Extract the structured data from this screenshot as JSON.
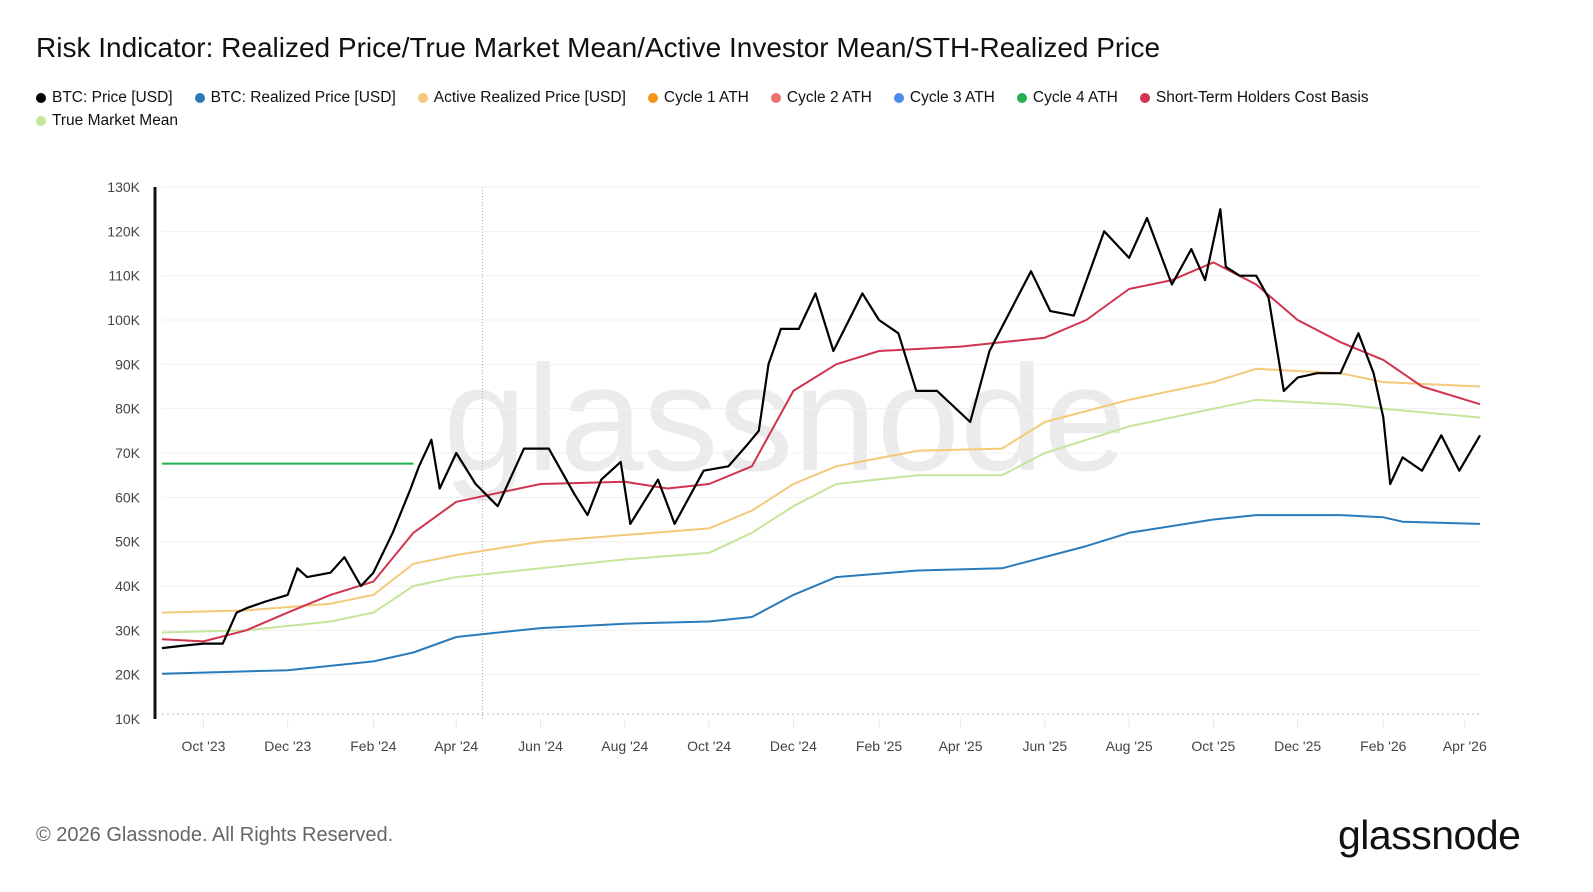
{
  "title": "Risk Indicator: Realized Price/True Market Mean/Active Investor Mean/STH-Realized Price",
  "footer": "© 2026 Glassnode. All Rights Reserved.",
  "logo_text": "glassnode",
  "watermark_text": "glassnode",
  "chart_data": {
    "type": "line",
    "title": "Risk Indicator: Realized Price/True Market Mean/Active Investor Mean/STH-Realized Price",
    "xlabel": "",
    "ylabel": "",
    "y_scale": "linear",
    "ylim": [
      10000,
      130000
    ],
    "xlim": [
      "2023-09-01",
      "2026-04-12"
    ],
    "grid": true,
    "legend_placement": "top-left",
    "y_ticks": [
      "10K",
      "20K",
      "30K",
      "40K",
      "50K",
      "60K",
      "70K",
      "80K",
      "90K",
      "100K",
      "110K",
      "120K",
      "130K"
    ],
    "x_ticks": [
      {
        "date": "2023-10-01",
        "label": "Oct '23"
      },
      {
        "date": "2023-12-01",
        "label": "Dec '23"
      },
      {
        "date": "2024-02-01",
        "label": "Feb '24"
      },
      {
        "date": "2024-04-01",
        "label": "Apr '24"
      },
      {
        "date": "2024-06-01",
        "label": "Jun '24"
      },
      {
        "date": "2024-08-01",
        "label": "Aug '24"
      },
      {
        "date": "2024-10-01",
        "label": "Oct '24"
      },
      {
        "date": "2024-12-01",
        "label": "Dec '24"
      },
      {
        "date": "2025-02-01",
        "label": "Feb '25"
      },
      {
        "date": "2025-04-01",
        "label": "Apr '25"
      },
      {
        "date": "2025-06-01",
        "label": "Jun '25"
      },
      {
        "date": "2025-08-01",
        "label": "Aug '25"
      },
      {
        "date": "2025-10-01",
        "label": "Oct '25"
      },
      {
        "date": "2025-12-01",
        "label": "Dec '25"
      },
      {
        "date": "2026-02-01",
        "label": "Feb '26"
      },
      {
        "date": "2026-04-01",
        "label": "Apr '26"
      }
    ],
    "vertical_marker_date": "2024-04-20",
    "series": [
      {
        "name": "BTC: Price [USD]",
        "color": "#000000",
        "width": 2.2,
        "points": [
          [
            "2023-09-01",
            26000
          ],
          [
            "2023-09-15",
            26500
          ],
          [
            "2023-10-01",
            27000
          ],
          [
            "2023-10-15",
            27000
          ],
          [
            "2023-10-25",
            34000
          ],
          [
            "2023-11-01",
            35000
          ],
          [
            "2023-11-15",
            36500
          ],
          [
            "2023-12-01",
            38000
          ],
          [
            "2023-12-08",
            44000
          ],
          [
            "2023-12-15",
            42000
          ],
          [
            "2024-01-01",
            43000
          ],
          [
            "2024-01-11",
            46500
          ],
          [
            "2024-01-23",
            40000
          ],
          [
            "2024-02-01",
            43000
          ],
          [
            "2024-02-15",
            52000
          ],
          [
            "2024-02-28",
            62000
          ],
          [
            "2024-03-05",
            67000
          ],
          [
            "2024-03-14",
            73000
          ],
          [
            "2024-03-20",
            62000
          ],
          [
            "2024-04-01",
            70000
          ],
          [
            "2024-04-15",
            63000
          ],
          [
            "2024-05-01",
            58000
          ],
          [
            "2024-05-20",
            71000
          ],
          [
            "2024-06-07",
            71000
          ],
          [
            "2024-06-25",
            61000
          ],
          [
            "2024-07-05",
            56000
          ],
          [
            "2024-07-15",
            64000
          ],
          [
            "2024-07-29",
            68000
          ],
          [
            "2024-08-05",
            54000
          ],
          [
            "2024-08-25",
            64000
          ],
          [
            "2024-09-06",
            54000
          ],
          [
            "2024-09-27",
            66000
          ],
          [
            "2024-10-15",
            67000
          ],
          [
            "2024-10-29",
            72000
          ],
          [
            "2024-11-06",
            75000
          ],
          [
            "2024-11-13",
            90000
          ],
          [
            "2024-11-22",
            98000
          ],
          [
            "2024-12-05",
            98000
          ],
          [
            "2024-12-17",
            106000
          ],
          [
            "2024-12-30",
            93000
          ],
          [
            "2025-01-20",
            106000
          ],
          [
            "2025-02-01",
            100000
          ],
          [
            "2025-02-15",
            97000
          ],
          [
            "2025-02-28",
            84000
          ],
          [
            "2025-03-15",
            84000
          ],
          [
            "2025-04-08",
            77000
          ],
          [
            "2025-04-22",
            93000
          ],
          [
            "2025-05-22",
            111000
          ],
          [
            "2025-06-05",
            102000
          ],
          [
            "2025-06-22",
            101000
          ],
          [
            "2025-07-14",
            120000
          ],
          [
            "2025-08-01",
            114000
          ],
          [
            "2025-08-14",
            123000
          ],
          [
            "2025-09-01",
            108000
          ],
          [
            "2025-09-15",
            116000
          ],
          [
            "2025-09-25",
            109000
          ],
          [
            "2025-10-06",
            125000
          ],
          [
            "2025-10-10",
            112000
          ],
          [
            "2025-10-20",
            110000
          ],
          [
            "2025-11-01",
            110000
          ],
          [
            "2025-11-10",
            105000
          ],
          [
            "2025-11-21",
            84000
          ],
          [
            "2025-12-01",
            87000
          ],
          [
            "2025-12-15",
            88000
          ],
          [
            "2026-01-01",
            88000
          ],
          [
            "2026-01-14",
            97000
          ],
          [
            "2026-01-25",
            88000
          ],
          [
            "2026-02-01",
            78000
          ],
          [
            "2026-02-06",
            63000
          ],
          [
            "2026-02-15",
            69000
          ],
          [
            "2026-03-01",
            66000
          ],
          [
            "2026-03-15",
            74000
          ],
          [
            "2026-03-28",
            66000
          ],
          [
            "2026-04-12",
            74000
          ]
        ]
      },
      {
        "name": "BTC: Realized Price [USD]",
        "color": "#2b7bba",
        "width": 2,
        "points": [
          [
            "2023-09-01",
            20200
          ],
          [
            "2023-12-01",
            21000
          ],
          [
            "2024-02-01",
            23000
          ],
          [
            "2024-03-01",
            25000
          ],
          [
            "2024-04-01",
            28500
          ],
          [
            "2024-06-01",
            30500
          ],
          [
            "2024-08-01",
            31500
          ],
          [
            "2024-10-01",
            32000
          ],
          [
            "2024-11-01",
            33000
          ],
          [
            "2024-12-01",
            38000
          ],
          [
            "2025-01-01",
            42000
          ],
          [
            "2025-03-01",
            43500
          ],
          [
            "2025-05-01",
            44000
          ],
          [
            "2025-07-01",
            49000
          ],
          [
            "2025-08-01",
            52000
          ],
          [
            "2025-10-01",
            55000
          ],
          [
            "2025-11-01",
            56000
          ],
          [
            "2026-01-01",
            56000
          ],
          [
            "2026-02-01",
            55500
          ],
          [
            "2026-02-15",
            54500
          ],
          [
            "2026-04-12",
            54000
          ]
        ]
      },
      {
        "name": "Active Realized Price [USD]",
        "color": "#f5c97a",
        "width": 2,
        "points": [
          [
            "2023-09-01",
            34000
          ],
          [
            "2023-11-01",
            34500
          ],
          [
            "2024-01-01",
            36000
          ],
          [
            "2024-02-01",
            38000
          ],
          [
            "2024-03-01",
            45000
          ],
          [
            "2024-04-01",
            47000
          ],
          [
            "2024-06-01",
            50000
          ],
          [
            "2024-08-01",
            51500
          ],
          [
            "2024-10-01",
            53000
          ],
          [
            "2024-11-01",
            57000
          ],
          [
            "2024-12-01",
            63000
          ],
          [
            "2025-01-01",
            67000
          ],
          [
            "2025-03-01",
            70500
          ],
          [
            "2025-05-01",
            71000
          ],
          [
            "2025-06-01",
            77000
          ],
          [
            "2025-08-01",
            82000
          ],
          [
            "2025-10-01",
            86000
          ],
          [
            "2025-11-01",
            89000
          ],
          [
            "2025-12-01",
            88500
          ],
          [
            "2026-01-01",
            88000
          ],
          [
            "2026-02-01",
            86000
          ],
          [
            "2026-04-12",
            85000
          ]
        ]
      },
      {
        "name": "Cycle 1 ATH",
        "color": "#f7931a",
        "width": 2,
        "points": []
      },
      {
        "name": "Cycle 2 ATH",
        "color": "#f07070",
        "width": 2,
        "points": []
      },
      {
        "name": "Cycle 3 ATH",
        "color": "#4a8cf0",
        "width": 2,
        "points": []
      },
      {
        "name": "Cycle 4 ATH",
        "color": "#22b14c",
        "width": 2,
        "points": [
          [
            "2023-09-01",
            67600
          ],
          [
            "2024-03-01",
            67600
          ]
        ]
      },
      {
        "name": "Short-Term Holders Cost Basis",
        "color": "#d1344f",
        "width": 2,
        "points": [
          [
            "2023-09-01",
            28000
          ],
          [
            "2023-10-01",
            27500
          ],
          [
            "2023-11-01",
            30000
          ],
          [
            "2023-12-01",
            34000
          ],
          [
            "2024-01-01",
            38000
          ],
          [
            "2024-02-01",
            41000
          ],
          [
            "2024-03-01",
            52000
          ],
          [
            "2024-04-01",
            59000
          ],
          [
            "2024-06-01",
            63000
          ],
          [
            "2024-08-01",
            63500
          ],
          [
            "2024-09-01",
            62000
          ],
          [
            "2024-10-01",
            63000
          ],
          [
            "2024-11-01",
            67000
          ],
          [
            "2024-12-01",
            84000
          ],
          [
            "2025-01-01",
            90000
          ],
          [
            "2025-02-01",
            93000
          ],
          [
            "2025-04-01",
            94000
          ],
          [
            "2025-06-01",
            96000
          ],
          [
            "2025-07-01",
            100000
          ],
          [
            "2025-08-01",
            107000
          ],
          [
            "2025-09-01",
            109000
          ],
          [
            "2025-10-01",
            113000
          ],
          [
            "2025-11-01",
            108000
          ],
          [
            "2025-12-01",
            100000
          ],
          [
            "2026-01-01",
            95000
          ],
          [
            "2026-02-01",
            91000
          ],
          [
            "2026-03-01",
            85000
          ],
          [
            "2026-04-12",
            81000
          ]
        ]
      },
      {
        "name": "True Market Mean",
        "color": "#c5e59a",
        "width": 2,
        "points": [
          [
            "2023-09-01",
            29500
          ],
          [
            "2023-11-01",
            30000
          ],
          [
            "2024-01-01",
            32000
          ],
          [
            "2024-02-01",
            34000
          ],
          [
            "2024-03-01",
            40000
          ],
          [
            "2024-04-01",
            42000
          ],
          [
            "2024-06-01",
            44000
          ],
          [
            "2024-08-01",
            46000
          ],
          [
            "2024-10-01",
            47500
          ],
          [
            "2024-11-01",
            52000
          ],
          [
            "2024-12-01",
            58000
          ],
          [
            "2025-01-01",
            63000
          ],
          [
            "2025-03-01",
            65000
          ],
          [
            "2025-05-01",
            65000
          ],
          [
            "2025-06-01",
            70000
          ],
          [
            "2025-08-01",
            76000
          ],
          [
            "2025-10-01",
            80000
          ],
          [
            "2025-11-01",
            82000
          ],
          [
            "2025-12-01",
            81500
          ],
          [
            "2026-01-01",
            81000
          ],
          [
            "2026-02-01",
            80000
          ],
          [
            "2026-04-12",
            78000
          ]
        ]
      }
    ]
  }
}
